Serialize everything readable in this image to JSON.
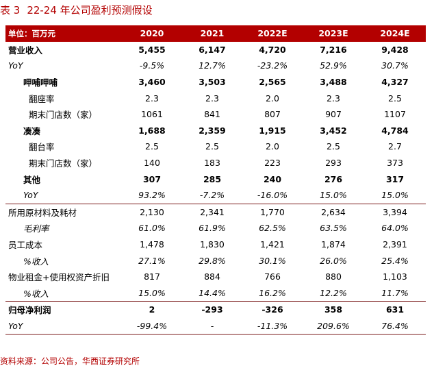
{
  "title": {
    "label": "表 3",
    "text": "22-24 年公司盈利预测假设"
  },
  "header": {
    "unit": "单位：百万元",
    "years": [
      "2020",
      "2021",
      "2022E",
      "2023E",
      "2024E"
    ]
  },
  "rows": [
    {
      "label": "营业收入",
      "values": [
        "5,455",
        "6,147",
        "4,720",
        "7,216",
        "9,428"
      ]
    },
    {
      "label": "YoY",
      "values": [
        "-9.5%",
        "12.7%",
        "-23.2%",
        "52.9%",
        "30.7%"
      ]
    },
    {
      "label": "呷哺呷哺",
      "values": [
        "3,460",
        "3,503",
        "2,565",
        "3,488",
        "4,327"
      ]
    },
    {
      "label": "翻座率",
      "values": [
        "2.3",
        "2.3",
        "2.0",
        "2.3",
        "2.5"
      ]
    },
    {
      "label": "期末门店数（家）",
      "values": [
        "1061",
        "841",
        "807",
        "907",
        "1107"
      ]
    },
    {
      "label": "凑凑",
      "values": [
        "1,688",
        "2,359",
        "1,915",
        "3,452",
        "4,784"
      ]
    },
    {
      "label": "翻台率",
      "values": [
        "2.5",
        "2.5",
        "2.0",
        "2.5",
        "2.7"
      ]
    },
    {
      "label": "期末门店数（家）",
      "values": [
        "140",
        "183",
        "223",
        "293",
        "373"
      ]
    },
    {
      "label": "其他",
      "values": [
        "307",
        "285",
        "240",
        "276",
        "317"
      ]
    },
    {
      "label": "YoY",
      "values": [
        "93.2%",
        "-7.2%",
        "-16.0%",
        "15.0%",
        "15.0%"
      ]
    },
    {
      "label": "所用原材料及耗材",
      "values": [
        "2,130",
        "2,341",
        "1,770",
        "2,634",
        "3,394"
      ]
    },
    {
      "label": "毛利率",
      "values": [
        "61.0%",
        "61.9%",
        "62.5%",
        "63.5%",
        "64.0%"
      ]
    },
    {
      "label": "员工成本",
      "values": [
        "1,478",
        "1,830",
        "1,421",
        "1,874",
        "2,391"
      ]
    },
    {
      "label": "%收入",
      "values": [
        "27.1%",
        "29.8%",
        "30.1%",
        "26.0%",
        "25.4%"
      ]
    },
    {
      "label": "物业租金+使用权资产折旧",
      "values": [
        "817",
        "884",
        "766",
        "880",
        "1,103"
      ]
    },
    {
      "label": "%收入",
      "values": [
        "15.0%",
        "14.4%",
        "16.2%",
        "12.2%",
        "11.7%"
      ]
    },
    {
      "label": "归母净利润",
      "values": [
        "2",
        "-293",
        "-326",
        "358",
        "631"
      ]
    },
    {
      "label": "YoY",
      "values": [
        "-99.4%",
        "-",
        "-11.3%",
        "209.6%",
        "76.4%"
      ]
    }
  ],
  "source": "资料来源：公司公告，华西证券研究所",
  "colors": {
    "accent": "#b30000",
    "header_text": "#ffffff"
  }
}
